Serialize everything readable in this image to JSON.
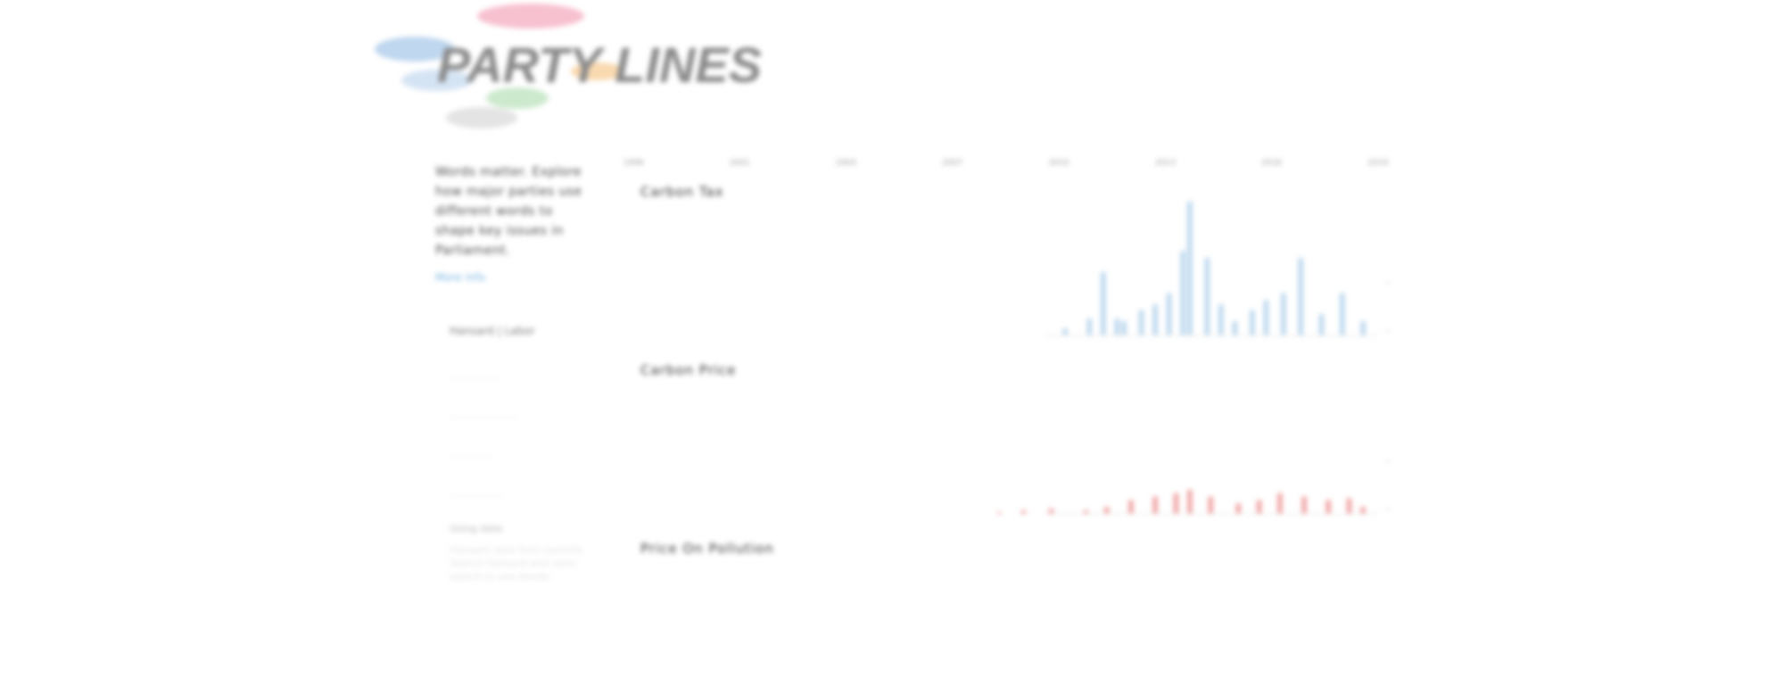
{
  "header": {
    "logo_text": "PARTY LINES"
  },
  "sidebar": {
    "intro": "Words matter. Explore how major parties use different words to shape key issues in Parliament.",
    "more_link": "More info",
    "filters": [
      {
        "label": "Hansard | Labor"
      },
      {
        "label": "..............."
      },
      {
        "label": "...................."
      },
      {
        "label": "............"
      },
      {
        "label": "................"
      }
    ],
    "footer": {
      "title": "Using data",
      "text": "Hansard data from parlinfo. Search Hansard and open search to see trends"
    }
  },
  "timeline": {
    "years": [
      "1998",
      "2001",
      "2004",
      "2007",
      "2010",
      "2013",
      "2016",
      "2019"
    ]
  },
  "colors": {
    "series_a": "#b4d3ec",
    "series_b": "#ef9a9a"
  },
  "panels": [
    {
      "title": "Carbon Tax",
      "series_color": "#b4d3ec",
      "chart_data": {
        "type": "bar",
        "x": [
          2010.4,
          2011.1,
          2011.5,
          2011.9,
          2012.1,
          2012.6,
          2013.0,
          2013.4,
          2013.8,
          2014.0,
          2014.5,
          2014.9,
          2015.3,
          2015.8,
          2016.2,
          2016.7,
          2017.2,
          2017.8,
          2018.4,
          2019.0
        ],
        "values": [
          5,
          12,
          45,
          12,
          10,
          18,
          22,
          30,
          60,
          95,
          55,
          22,
          10,
          18,
          25,
          30,
          55,
          15,
          30,
          10
        ]
      }
    },
    {
      "title": "Carbon Price",
      "series_color": "#ef9a9a",
      "chart_data": {
        "type": "bar",
        "x": [
          2008.5,
          2009.2,
          2010.0,
          2011.0,
          2011.6,
          2012.3,
          2013.0,
          2013.6,
          2014.0,
          2014.6,
          2015.4,
          2016.0,
          2016.6,
          2017.3,
          2018.0,
          2018.6,
          2019.0
        ],
        "values": [
          1,
          2,
          3,
          2,
          4,
          8,
          10,
          12,
          14,
          10,
          6,
          8,
          12,
          10,
          8,
          9,
          4
        ]
      }
    },
    {
      "title": "Price On Pollution",
      "series_color": "#ef9a9a",
      "chart_data": {
        "type": "bar",
        "x": [],
        "values": []
      }
    }
  ]
}
